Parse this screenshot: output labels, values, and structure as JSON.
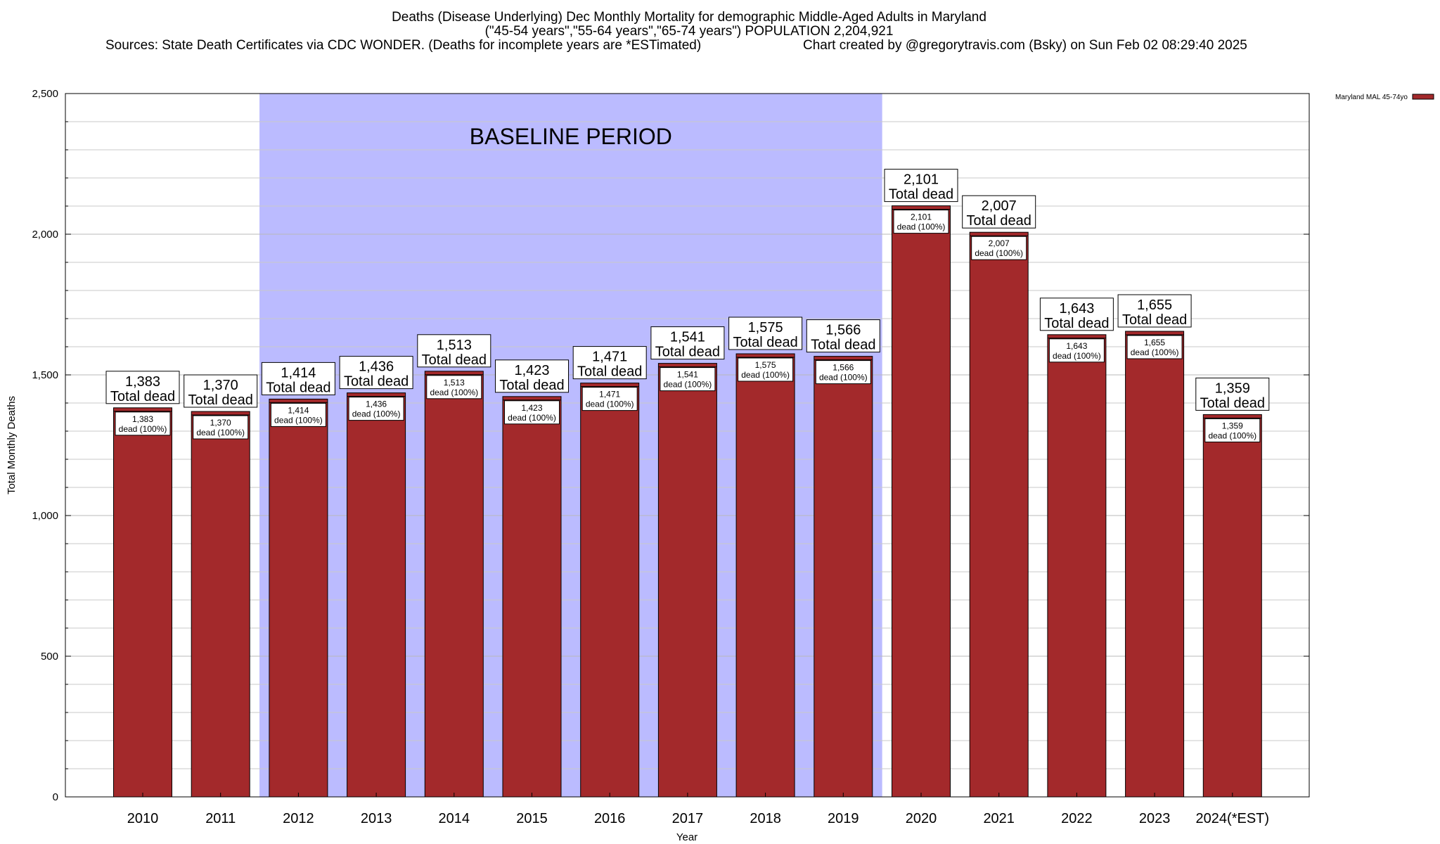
{
  "chart_data": {
    "type": "bar",
    "title": "Deaths (Disease Underlying) Dec Monthly Mortality for demographic Middle-Aged Adults in Maryland",
    "subtitle": "(\"45-54 years\",\"55-64 years\",\"65-74 years\") POPULATION 2,204,921",
    "sources": "Sources: State Death Certificates via CDC WONDER. (Deaths for incomplete years are *ESTimated)",
    "credit": "Chart created by @gregorytravis.com (Bsky) on Sun Feb 02 08:29:40 2025",
    "xlabel": "Year",
    "ylabel": "Total Monthly Deaths",
    "ylim": [
      0,
      2500
    ],
    "yticks": [
      0,
      500,
      1000,
      1500,
      2000,
      2500
    ],
    "ytick_labels": [
      "0",
      "500",
      "1,000",
      "1,500",
      "2,000",
      "2,500"
    ],
    "categories": [
      "2010",
      "2011",
      "2012",
      "2013",
      "2014",
      "2015",
      "2016",
      "2017",
      "2018",
      "2019",
      "2020",
      "2021",
      "2022",
      "2023",
      "2024(*EST)"
    ],
    "series": [
      {
        "name": "Maryland MAL 45-74yo",
        "color": "#a3292b",
        "values": [
          1383,
          1370,
          1414,
          1436,
          1513,
          1423,
          1471,
          1541,
          1575,
          1566,
          2101,
          2007,
          1643,
          1655,
          1359
        ],
        "value_labels": [
          "1,383",
          "1,370",
          "1,414",
          "1,436",
          "1,513",
          "1,423",
          "1,471",
          "1,541",
          "1,575",
          "1,566",
          "2,101",
          "2,007",
          "1,643",
          "1,655",
          "1,359"
        ]
      }
    ],
    "top_label_suffix": "Total dead",
    "inner_label_suffix": "dead (100%)",
    "baseline": {
      "label": "BASELINE PERIOD",
      "from_category": "2012",
      "to_category": "2019",
      "color": "#bbbbff"
    },
    "grid": true,
    "legend_position": "top-right"
  }
}
